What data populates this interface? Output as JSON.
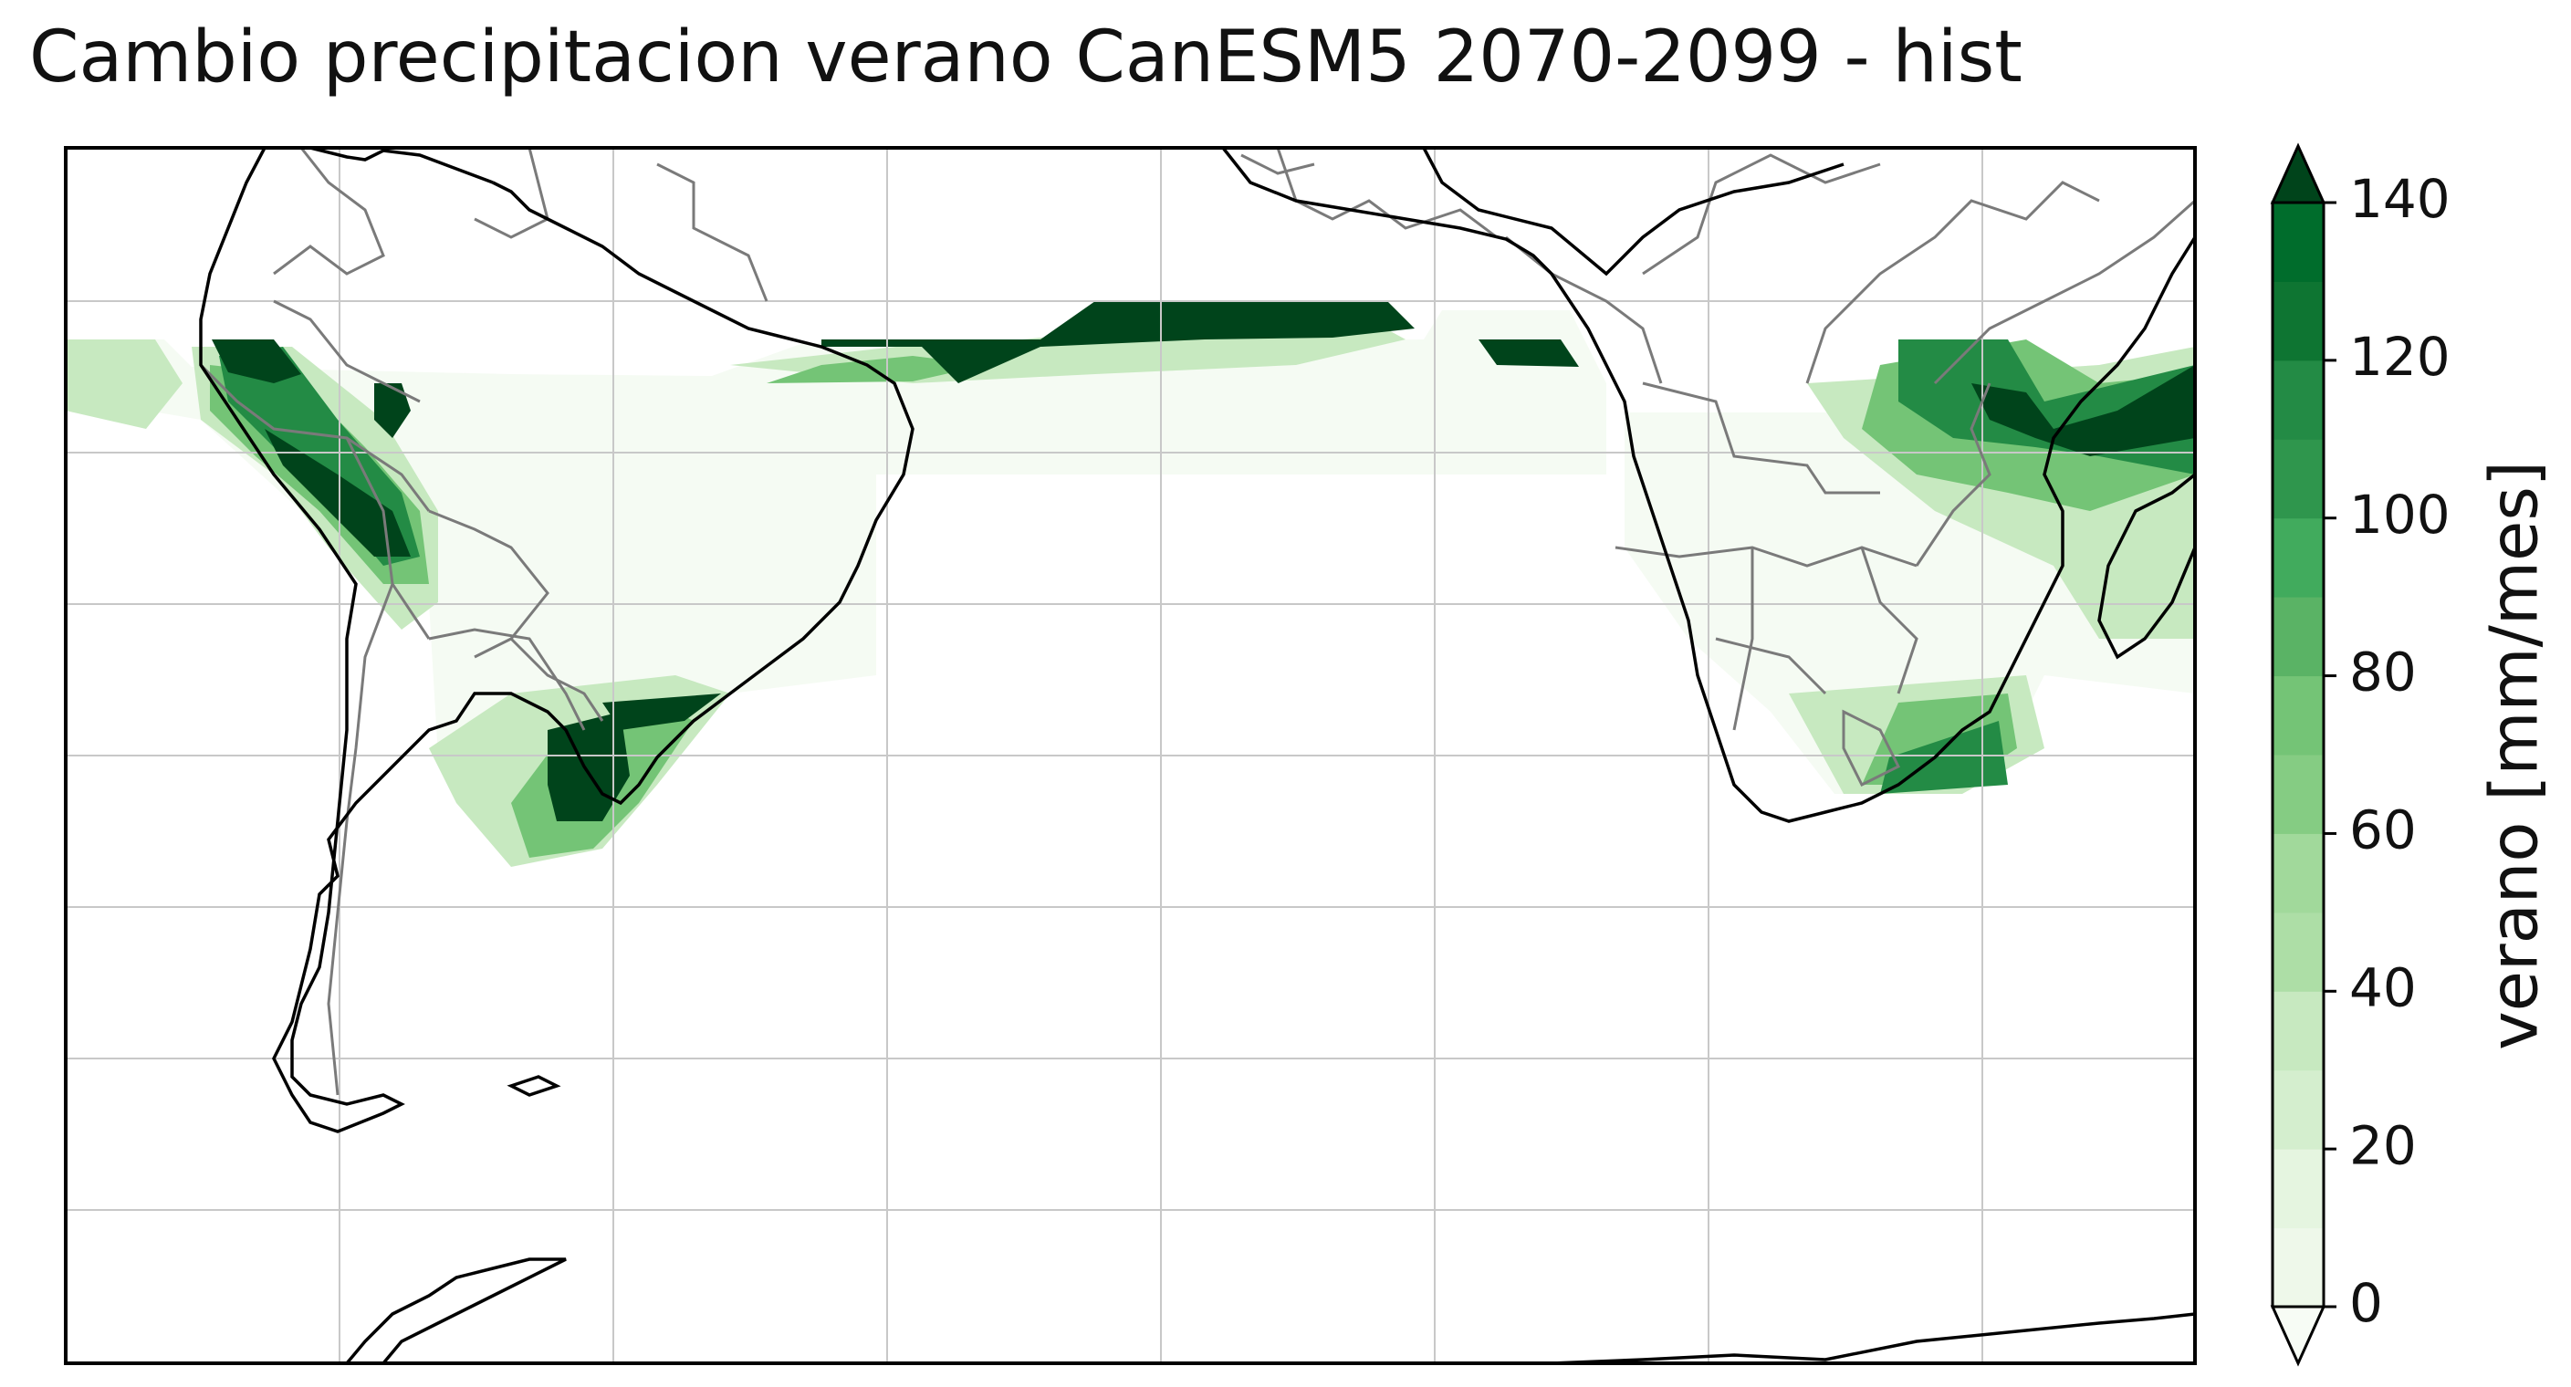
{
  "title": "Cambio precipitacion verano CanESM5 2070-2099 - hist",
  "colorbar": {
    "label": "verano [mm/mes]",
    "ticks": [
      "0",
      "20",
      "40",
      "60",
      "80",
      "100",
      "120",
      "140"
    ],
    "min": 0,
    "max": 140,
    "levels": 14,
    "extend": "both",
    "colors": [
      "#f7fcf5",
      "#eef8ea",
      "#e5f5e0",
      "#d4eece",
      "#c7e9c0",
      "#addea6",
      "#a1d99b",
      "#85cc83",
      "#74c476",
      "#5ab365",
      "#41ab5d",
      "#2f964d",
      "#238b45",
      "#0e7532",
      "#006d2c",
      "#00441b"
    ]
  },
  "map": {
    "projection": "PlateCarree",
    "gridlines": true,
    "field_colors": {
      "pale": "#f5fbf3",
      "light": "#c7e9c0",
      "mid": "#74c476",
      "dark": "#238b45",
      "darkest": "#00441b"
    }
  }
}
